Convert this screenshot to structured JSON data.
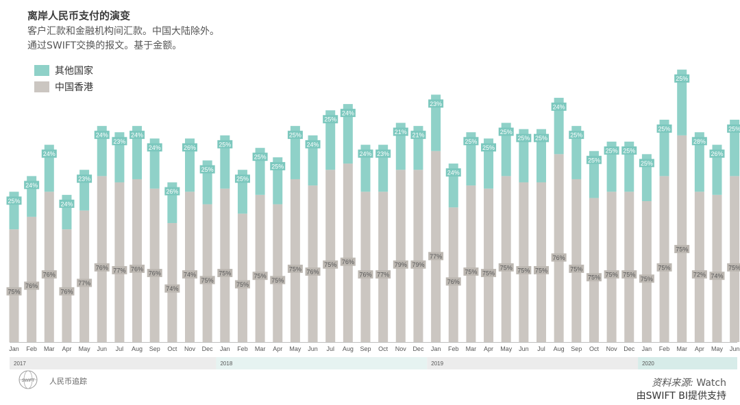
{
  "header": {
    "title": "离岸人民币支付的演变",
    "subtitle1": "客户汇款和金融机构间汇款。中国大陆除外。",
    "subtitle2": "通过SWIFT交换的报文。基于金额。"
  },
  "footer": {
    "tracker": "人民币追踪",
    "logo_text": "SWIFT",
    "source_prefix": "资料来源:",
    "source_name": " Watch",
    "powered_by": "由SWIFT BI提供支持"
  },
  "colors": {
    "other": "#8fd1c8",
    "hk": "#cbc6c1",
    "label_other": "#7cc8be",
    "label_hk": "#bdb8b2"
  },
  "chart_data": {
    "type": "bar",
    "stacked": true,
    "normalized": false,
    "legend": [
      "其他国家",
      "中国香港"
    ],
    "legend_position": "top-left",
    "categories": [
      "Jan",
      "Feb",
      "Mar",
      "Apr",
      "May",
      "Jun",
      "Jul",
      "Aug",
      "Sep",
      "Oct",
      "Nov",
      "Dec",
      "Jan",
      "Feb",
      "Mar",
      "Apr",
      "May",
      "Jun",
      "Jul",
      "Aug",
      "Sep",
      "Oct",
      "Nov",
      "Dec",
      "Jan",
      "Feb",
      "Mar",
      "Apr",
      "May",
      "Jun",
      "Jul",
      "Aug",
      "Sep",
      "Oct",
      "Nov",
      "Dec",
      "Jan",
      "Feb",
      "Mar",
      "Apr",
      "May",
      "Jun"
    ],
    "years": [
      {
        "label": "2017",
        "start": 0,
        "end": 11
      },
      {
        "label": "2018",
        "start": 12,
        "end": 23
      },
      {
        "label": "2019",
        "start": 24,
        "end": 35
      },
      {
        "label": "2020",
        "start": 36,
        "end": 41
      }
    ],
    "series": [
      {
        "name": "中国香港",
        "share_labels": [
          "75%",
          "76%",
          "76%",
          "76%",
          "77%",
          "76%",
          "77%",
          "76%",
          "76%",
          "74%",
          "74%",
          "75%",
          "75%",
          "75%",
          "75%",
          "75%",
          "75%",
          "76%",
          "75%",
          "76%",
          "76%",
          "77%",
          "79%",
          "79%",
          "77%",
          "76%",
          "75%",
          "75%",
          "75%",
          "75%",
          "75%",
          "76%",
          "75%",
          "75%",
          "75%",
          "75%",
          "75%",
          "75%",
          "75%",
          "72%",
          "74%",
          "75%"
        ]
      },
      {
        "name": "其他国家",
        "share_labels": [
          "25%",
          "24%",
          "24%",
          "24%",
          "23%",
          "24%",
          "23%",
          "24%",
          "24%",
          "26%",
          "26%",
          "25%",
          "25%",
          "25%",
          "25%",
          "25%",
          "25%",
          "24%",
          "25%",
          "24%",
          "24%",
          "23%",
          "21%",
          "21%",
          "23%",
          "24%",
          "25%",
          "25%",
          "25%",
          "25%",
          "25%",
          "24%",
          "25%",
          "25%",
          "25%",
          "25%",
          "25%",
          "25%",
          "25%",
          "28%",
          "26%",
          "25%"
        ]
      }
    ],
    "totals": [
      48,
      53,
      63,
      47,
      55,
      69,
      67,
      69,
      65,
      51,
      65,
      58,
      66,
      55,
      62,
      59,
      69,
      66,
      74,
      76,
      63,
      63,
      70,
      69,
      79,
      57,
      67,
      65,
      70,
      68,
      68,
      78,
      69,
      61,
      64,
      64,
      60,
      71,
      87,
      67,
      63,
      71
    ],
    "hk_values": [
      36,
      40,
      48,
      36,
      42,
      53,
      51,
      52,
      49,
      38,
      48,
      44,
      49,
      41,
      47,
      44,
      52,
      50,
      55,
      57,
      48,
      48,
      55,
      55,
      61,
      43,
      50,
      49,
      53,
      51,
      51,
      60,
      52,
      46,
      48,
      48,
      45,
      53,
      66,
      48,
      47,
      53
    ],
    "ylim": [
      0,
      90
    ]
  }
}
